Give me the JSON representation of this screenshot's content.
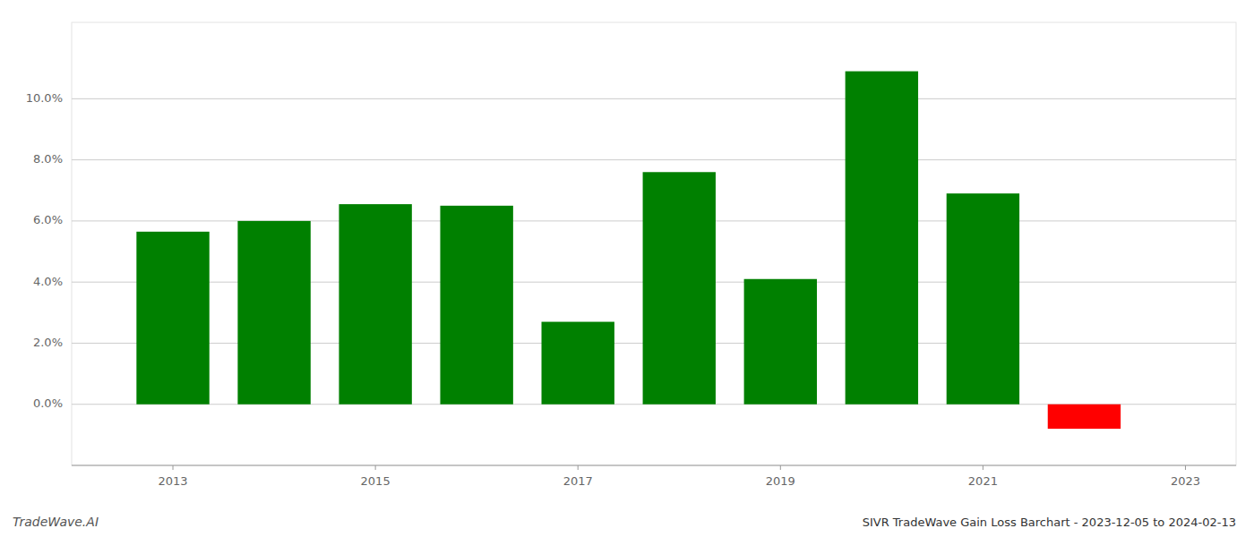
{
  "chart_data": {
    "type": "bar",
    "title": "SIVR TradeWave Gain Loss Barchart - 2023-12-05 to 2024-02-13",
    "annotations": [
      "TradeWave.AI"
    ],
    "x": [
      2013,
      2014,
      2015,
      2016,
      2017,
      2018,
      2019,
      2020,
      2021,
      2022
    ],
    "values": [
      0.0565,
      0.06,
      0.0655,
      0.065,
      0.027,
      0.076,
      0.041,
      0.109,
      0.069,
      -0.008
    ],
    "colors": [
      "#008000",
      "#008000",
      "#008000",
      "#008000",
      "#008000",
      "#008000",
      "#008000",
      "#008000",
      "#008000",
      "#ff0000"
    ],
    "xlim": [
      2012.0,
      2023.5
    ],
    "xticks": [
      2013,
      2015,
      2017,
      2019,
      2021,
      2023
    ],
    "ylim": [
      -0.02,
      0.125
    ],
    "yticks": [
      {
        "value": 0.0,
        "label": "0.0%"
      },
      {
        "value": 0.02,
        "label": "2.0%"
      },
      {
        "value": 0.04,
        "label": "4.0%"
      },
      {
        "value": 0.06,
        "label": "6.0%"
      },
      {
        "value": 0.08,
        "label": "8.0%"
      },
      {
        "value": 0.1,
        "label": "10.0%"
      }
    ],
    "grid": true
  }
}
